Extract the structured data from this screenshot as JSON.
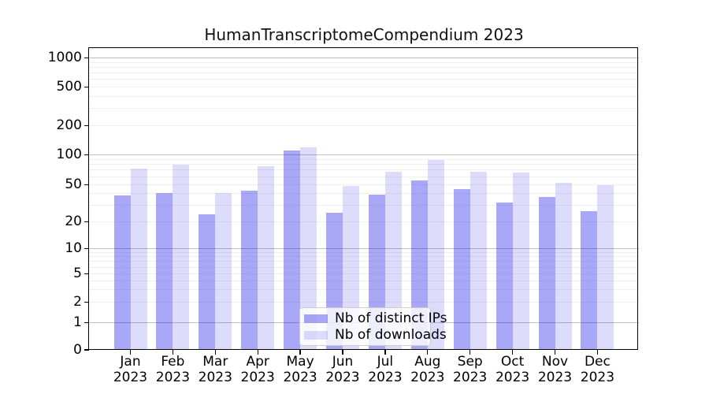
{
  "chart_data": {
    "type": "bar",
    "title": "HumanTranscriptomeCompendium 2023",
    "categories": [
      "Jan",
      "Feb",
      "Mar",
      "Apr",
      "May",
      "Jun",
      "Jul",
      "Aug",
      "Sep",
      "Oct",
      "Nov",
      "Dec"
    ],
    "x_tick_second_line": "2023",
    "series": [
      {
        "name": "Nb of distinct IPs",
        "color": "rgba(13,13,230,0.36)",
        "values": [
          38,
          41,
          24,
          43,
          110,
          25,
          39,
          55,
          45,
          32,
          37,
          26
        ]
      },
      {
        "name": "Nb of downloads",
        "color": "rgba(13,13,230,0.14)",
        "values": [
          72,
          79,
          41,
          77,
          120,
          48,
          67,
          89,
          67,
          66,
          52,
          49
        ]
      }
    ],
    "yscale": "symlog",
    "y_tick_values": [
      0,
      1,
      2,
      5,
      10,
      20,
      50,
      100,
      200,
      500,
      1000
    ],
    "y_major_grid_values": [
      1,
      10,
      100,
      1000
    ],
    "ylim": [
      0,
      1320
    ],
    "xlabel": "",
    "ylabel": "",
    "grid": true,
    "legend_position": "lower center inside plot"
  },
  "colors": {
    "major_grid": "#bfbfbf",
    "minor_grid": "#efefef",
    "bar_distinct_ips_on_white": "#a8a8f0",
    "bar_downloads_on_white": "#dcdcf8",
    "legend_border": "#cccccc",
    "axis": "#000000"
  }
}
